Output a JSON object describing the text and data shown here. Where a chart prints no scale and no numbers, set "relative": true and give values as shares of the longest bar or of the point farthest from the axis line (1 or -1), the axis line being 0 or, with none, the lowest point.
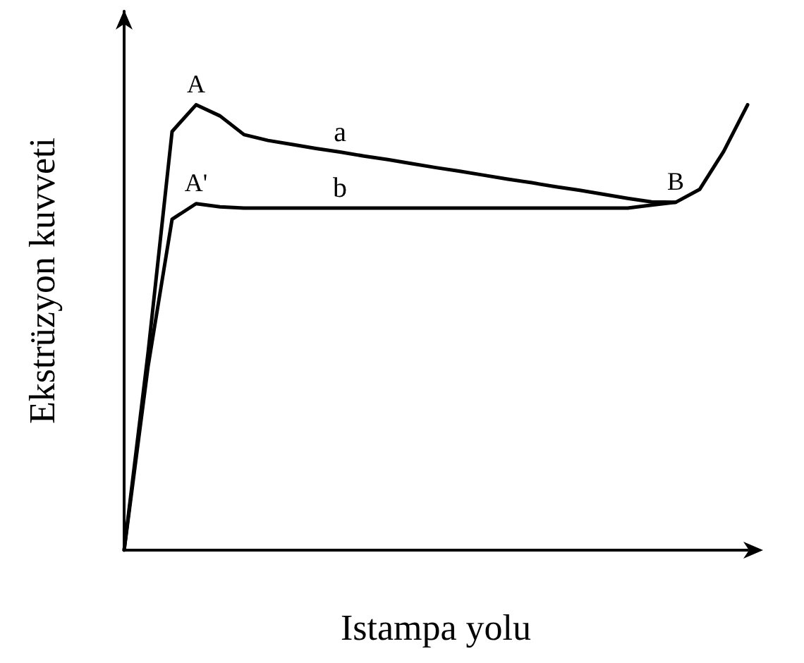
{
  "chart_data": {
    "type": "line",
    "relative": true,
    "xlabel": "Istampa yolu",
    "ylabel": "Ekstrüzyon kuvveti",
    "grid": false,
    "legend": false,
    "marker": "none",
    "line_style": "solid",
    "categories": [
      null,
      null,
      null,
      null,
      null,
      null,
      null,
      null,
      null,
      null,
      null,
      null,
      null,
      null,
      null,
      null,
      null,
      null,
      null,
      null,
      null,
      null,
      null,
      null,
      null,
      null,
      null
    ],
    "series": [
      {
        "name": "a",
        "color": "#000000",
        "values": [
          0,
          0.444,
          0.94,
          1,
          0.975,
          0.933,
          0.92,
          0.911,
          0.902,
          0.894,
          0.885,
          0.877,
          0.868,
          0.859,
          0.851,
          0.842,
          0.833,
          0.825,
          0.816,
          0.808,
          0.799,
          0.79,
          0.782,
          0.781,
          0.81,
          0.895,
          1
        ]
      },
      {
        "name": "b",
        "color": "#000000",
        "values": [
          0,
          0.413,
          0.743,
          0.778,
          0.771,
          0.768,
          0.768,
          0.768,
          0.768,
          0.768,
          0.768,
          0.768,
          0.768,
          0.768,
          0.768,
          0.768,
          0.768,
          0.768,
          0.768,
          0.768,
          0.768,
          0.768,
          0.775,
          0.781,
          null,
          null,
          null
        ]
      }
    ],
    "annotations": [
      {
        "text": "A",
        "y": 1
      },
      {
        "text": "A'",
        "y": 0.778
      },
      {
        "text": "B",
        "y": 0.781
      }
    ]
  }
}
